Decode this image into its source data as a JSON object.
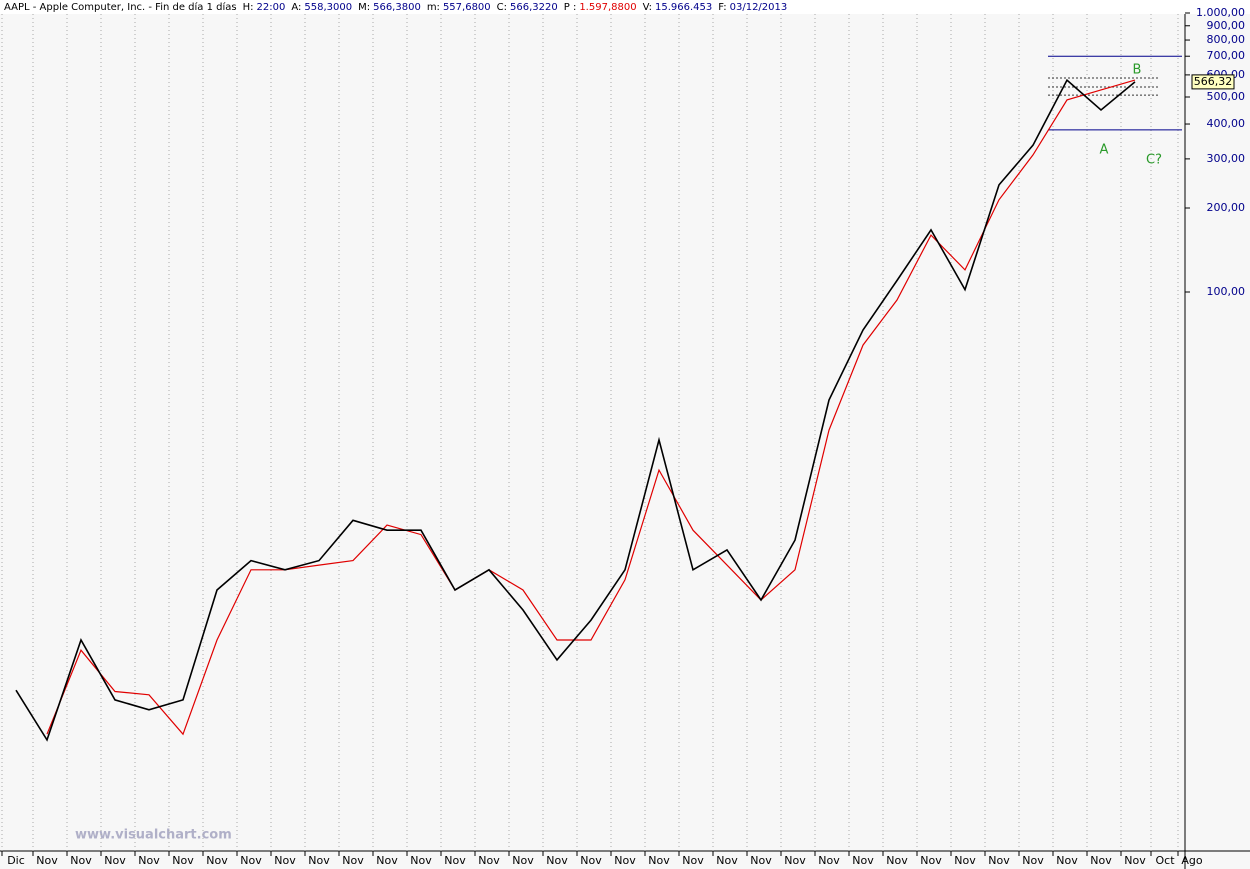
{
  "chart_data": {
    "type": "line",
    "header": [
      {
        "label": "AAPL - Apple Computer, Inc. - Fin de día 1 días"
      },
      {
        "label": "H:",
        "value": "22:00"
      },
      {
        "label": "A:",
        "value": "558,3000"
      },
      {
        "label": "M:",
        "value": "566,3800"
      },
      {
        "label": "m:",
        "value": "557,6800"
      },
      {
        "label": "C:",
        "value": "566,3220"
      },
      {
        "label": "P :",
        "value": "1.597,8800",
        "color": "#e00000"
      },
      {
        "label": "V:",
        "value": "15.966.453"
      },
      {
        "label": "F:",
        "value": "03/12/2013"
      }
    ],
    "categories": [
      "Dic",
      "Nov",
      "Nov",
      "Nov",
      "Nov",
      "Nov",
      "Nov",
      "Nov",
      "Nov",
      "Nov",
      "Nov",
      "Nov",
      "Nov",
      "Nov",
      "Nov",
      "Nov",
      "Nov",
      "Nov",
      "Nov",
      "Nov",
      "Nov",
      "Nov",
      "Nov",
      "Nov",
      "Nov",
      "Nov",
      "Nov",
      "Nov",
      "Nov",
      "Nov",
      "Nov",
      "Nov",
      "Nov",
      "Nov",
      "Oct",
      "Ago"
    ],
    "series": [
      {
        "name": "AAPL",
        "color": "#000000",
        "values": [
          3.74,
          2.48,
          5.66,
          3.45,
          3.18,
          3.45,
          8.55,
          10.9,
          10.1,
          10.9,
          15.2,
          14.0,
          14.0,
          8.55,
          10.1,
          7.25,
          4.8,
          6.67,
          10.1,
          29.5,
          10.1,
          11.9,
          7.87,
          12.9,
          41.0,
          73.1,
          110,
          167,
          102,
          242,
          336,
          575,
          449,
          566.32,
          null,
          null
        ]
      },
      {
        "name": "Media",
        "color": "#e00000",
        "values": [
          null,
          2.6,
          5.2,
          3.7,
          3.6,
          2.6,
          5.66,
          10.1,
          10.1,
          10.5,
          10.9,
          14.6,
          13.5,
          8.55,
          10.1,
          8.55,
          5.66,
          5.66,
          9.3,
          23,
          14.0,
          10.5,
          7.87,
          10.1,
          32,
          64.5,
          93.6,
          160,
          120,
          214,
          310,
          488,
          530,
          575,
          null,
          null
        ]
      }
    ],
    "log_scale": true,
    "ylim": [
      1,
      1000
    ],
    "yticks": [
      {
        "value": 1000,
        "label": "1.000,00"
      },
      {
        "value": 900,
        "label": "900,00"
      },
      {
        "value": 800,
        "label": "800,00"
      },
      {
        "value": 700,
        "label": "700,00"
      },
      {
        "value": 600,
        "label": "600,00"
      },
      {
        "value": 500,
        "label": "500,00"
      },
      {
        "value": 400,
        "label": "400,00"
      },
      {
        "value": 300,
        "label": "300,00"
      },
      {
        "value": 200,
        "label": "200,00"
      },
      {
        "value": 100,
        "label": "100,00"
      }
    ],
    "last_price": {
      "value": 566.32,
      "label": "566,32"
    },
    "levels": [
      {
        "value": 700,
        "style": "solid"
      },
      {
        "value": 381,
        "style": "solid"
      },
      {
        "value": 585,
        "style": "dotted"
      },
      {
        "value": 543,
        "style": "dotted"
      },
      {
        "value": 508,
        "style": "dotted"
      }
    ],
    "annotations": [
      "A",
      "B",
      "C?"
    ],
    "watermark": "www.visualchart.com"
  }
}
